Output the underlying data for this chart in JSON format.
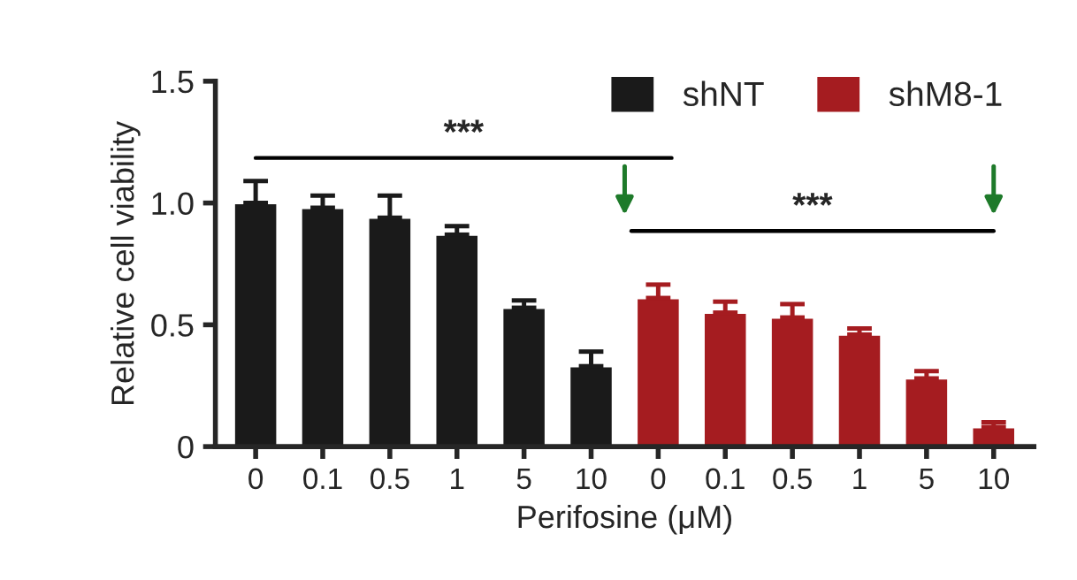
{
  "chart_data": {
    "type": "bar",
    "xlabel": "Perifosine (μM)",
    "ylabel": "Relative cell viability",
    "categories": [
      "0",
      "0.1",
      "0.5",
      "1",
      "5",
      "10",
      "0",
      "0.1",
      "0.5",
      "1",
      "5",
      "10"
    ],
    "series": [
      {
        "name": "shNT",
        "color": "#1a1a1a",
        "values": [
          1.0,
          0.98,
          0.94,
          0.87,
          0.57,
          0.33,
          null,
          null,
          null,
          null,
          null,
          null
        ],
        "errors": [
          [
            1.0,
            1.09
          ],
          [
            0.98,
            1.03
          ],
          [
            0.94,
            1.03
          ],
          [
            0.87,
            0.905
          ],
          [
            0.57,
            0.6
          ],
          [
            0.33,
            0.39
          ],
          null,
          null,
          null,
          null,
          null,
          null
        ]
      },
      {
        "name": "shM8-1",
        "color": "#a51c20",
        "values": [
          null,
          null,
          null,
          null,
          null,
          null,
          0.61,
          0.55,
          0.53,
          0.46,
          0.28,
          0.08
        ],
        "errors": [
          null,
          null,
          null,
          null,
          null,
          null,
          [
            0.61,
            0.665
          ],
          [
            0.55,
            0.595
          ],
          [
            0.53,
            0.585
          ],
          [
            0.46,
            0.485
          ],
          [
            0.28,
            0.31
          ],
          [
            0.08,
            0.1
          ]
        ]
      }
    ],
    "ylim": [
      0,
      1.5
    ],
    "yticks": [
      {
        "value": 0,
        "label": "0"
      },
      {
        "value": 0.5,
        "label": "0.5"
      },
      {
        "value": 1.0,
        "label": "1.0"
      },
      {
        "value": 1.5,
        "label": "1.5"
      }
    ],
    "annotations": [
      "***",
      "***"
    ],
    "legend": "top right",
    "grid": false
  }
}
